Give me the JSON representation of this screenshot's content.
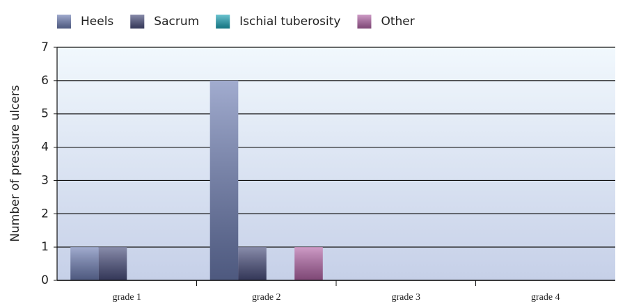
{
  "chart_data": {
    "type": "bar",
    "y_label": "Number of pressure ulcers",
    "categories": [
      "grade 1",
      "grade 2",
      "grade 3",
      "grade 4"
    ],
    "series": [
      {
        "name": "Heels",
        "color": "#6f7fb5",
        "values": [
          1,
          6,
          0,
          0
        ]
      },
      {
        "name": "Sacrum",
        "color": "#4a4f7e",
        "values": [
          1,
          1,
          0,
          0
        ]
      },
      {
        "name": "Ischial tuberosity",
        "color": "#1ea5b8",
        "values": [
          0,
          0,
          0,
          0
        ]
      },
      {
        "name": "Other",
        "color": "#b466a8",
        "values": [
          0,
          1,
          0,
          0
        ]
      }
    ],
    "ylim": [
      0,
      7
    ],
    "yticks": [
      0,
      1,
      2,
      3,
      4,
      5,
      6,
      7
    ],
    "grid": true,
    "legend": "top"
  }
}
